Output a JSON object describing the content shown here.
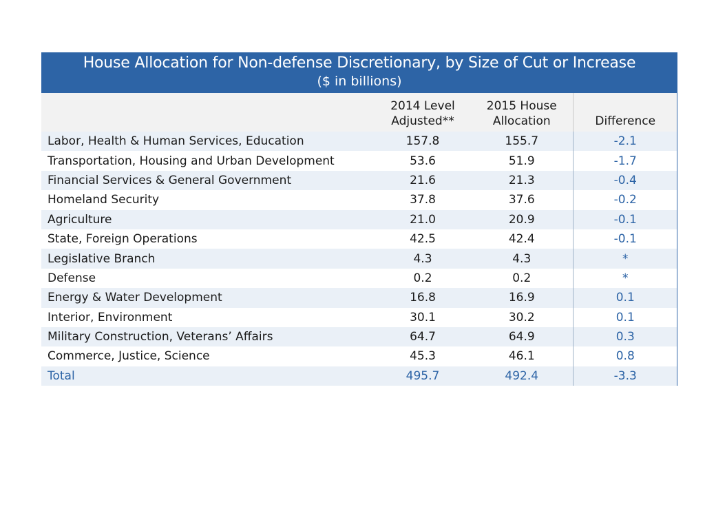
{
  "table": {
    "title": "House Allocation for Non-defense Discretionary, by Size of Cut or Increase",
    "subtitle": "($ in billions)",
    "headers": {
      "col1_line1": "2014 Level",
      "col1_line2": "Adjusted**",
      "col2_line1": "2015 House",
      "col2_line2": "Allocation",
      "col3": "Difference"
    },
    "rows": [
      {
        "label": "Labor, Health & Human Services, Education",
        "level_2014": "157.8",
        "alloc_2015": "155.7",
        "difference": "-2.1"
      },
      {
        "label": "Transportation, Housing and Urban Development",
        "level_2014": "53.6",
        "alloc_2015": "51.9",
        "difference": "-1.7"
      },
      {
        "label": "Financial Services & General Government",
        "level_2014": "21.6",
        "alloc_2015": "21.3",
        "difference": "-0.4"
      },
      {
        "label": "Homeland Security",
        "level_2014": "37.8",
        "alloc_2015": "37.6",
        "difference": "-0.2"
      },
      {
        "label": "Agriculture",
        "level_2014": "21.0",
        "alloc_2015": "20.9",
        "difference": "-0.1"
      },
      {
        "label": "State, Foreign Operations",
        "level_2014": "42.5",
        "alloc_2015": "42.4",
        "difference": "-0.1"
      },
      {
        "label": "Legislative Branch",
        "level_2014": "4.3",
        "alloc_2015": "4.3",
        "difference": "*"
      },
      {
        "label": "Defense",
        "level_2014": "0.2",
        "alloc_2015": "0.2",
        "difference": "*"
      },
      {
        "label": "Energy & Water Development",
        "level_2014": "16.8",
        "alloc_2015": "16.9",
        "difference": "0.1"
      },
      {
        "label": "Interior, Environment",
        "level_2014": "30.1",
        "alloc_2015": "30.2",
        "difference": "0.1"
      },
      {
        "label": "Military Construction, Veterans’ Affairs",
        "level_2014": "64.7",
        "alloc_2015": "64.9",
        "difference": "0.3"
      },
      {
        "label": "Commerce, Justice, Science",
        "level_2014": "45.3",
        "alloc_2015": "46.1",
        "difference": "0.8"
      }
    ],
    "total": {
      "label": "Total",
      "level_2014": "495.7",
      "alloc_2015": "492.4",
      "difference": "-3.3"
    }
  },
  "colors": {
    "header_blue": "#2d64a6",
    "row_shade": "#eaf0f7",
    "header_gray": "#f2f2f2"
  }
}
